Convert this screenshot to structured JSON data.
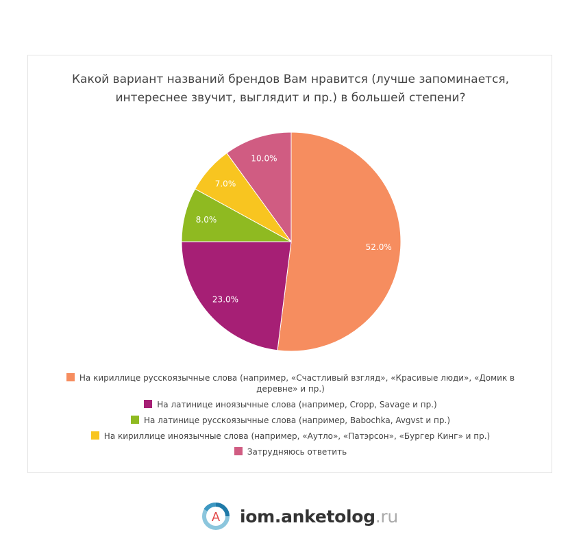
{
  "chart_data": {
    "type": "pie",
    "title_lines": [
      "Какой вариант названий брендов Вам нравится (лучше запоминается,",
      "интереснее звучит, выглядит и пр.) в большей степени?"
    ],
    "slices": [
      {
        "label": "На кириллице русскоязычные слова (например, «Счастливый взгляд», «Красивые люди», «Домик в деревне» и пр.)",
        "value": 52.0,
        "display": "52.0%",
        "color": "#f68d5f"
      },
      {
        "label": "На латинице иноязычные слова (например, Cropp, Savage и пр.)",
        "value": 23.0,
        "display": "23.0%",
        "color": "#a61f75"
      },
      {
        "label": "На латинице русскоязычные слова (например, Babochka, Avgvst и пр.)",
        "value": 8.0,
        "display": "8.0%",
        "color": "#8fba21"
      },
      {
        "label": "На кириллице иноязычные слова (например, «Аутло», «Патэрсон», «Бургер Кинг» и пр.)",
        "value": 7.0,
        "display": "7.0%",
        "color": "#f8c520"
      },
      {
        "label": "Затрудняюсь ответить",
        "value": 10.0,
        "display": "10.0%",
        "color": "#d05c82"
      }
    ],
    "legend_position": "bottom"
  },
  "logo": {
    "name": "iom.anketolog",
    "tld": ".ru",
    "letter": "А"
  }
}
